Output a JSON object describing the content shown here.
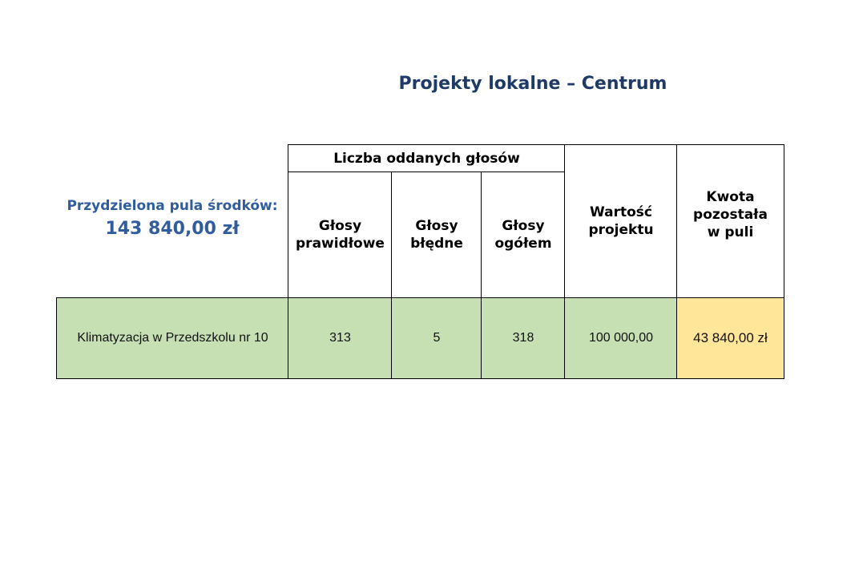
{
  "title": "Projekty lokalne – Centrum",
  "pool": {
    "label": "Przydzielona pula środków:",
    "amount": "143 840,00 zł"
  },
  "table": {
    "group_header": "Liczba oddanych głosów",
    "headers": {
      "valid_votes": [
        "Głosy",
        "prawidłowe"
      ],
      "invalid_votes": [
        "Głosy",
        "błędne"
      ],
      "total_votes": [
        "Głosy",
        "ogółem"
      ],
      "project_value": [
        "Wartość",
        "projektu"
      ],
      "remaining": [
        "Kwota",
        "pozostała",
        "w puli"
      ]
    },
    "rows": [
      {
        "name": "Klimatyzacja w Przedszkolu nr 10",
        "valid_votes": "313",
        "invalid_votes": "5",
        "total_votes": "318",
        "project_value": "100 000,00",
        "remaining": "43 840,00 zł"
      }
    ]
  },
  "colors": {
    "title": "#1f3a66",
    "pool": "#2f5d9e",
    "row_green": "#c6e0b4",
    "remaining_yellow": "#ffe699"
  }
}
